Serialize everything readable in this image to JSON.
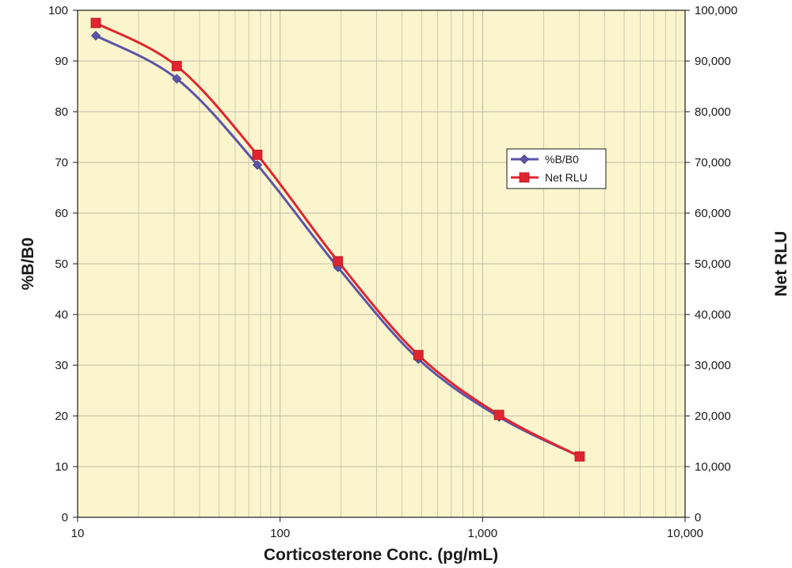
{
  "chart_data": {
    "type": "line",
    "x_scale": "log",
    "xlim": [
      10,
      10000
    ],
    "x_ticks": [
      10,
      100,
      1000,
      10000
    ],
    "x_tick_labels": [
      "10",
      "100",
      "1,000",
      "10,000"
    ],
    "xlabel": "Corticosterone Conc. (pg/mL)",
    "ylabel": "%B/B0",
    "ylim": [
      0,
      100
    ],
    "y_ticks": [
      0,
      10,
      20,
      30,
      40,
      50,
      60,
      70,
      80,
      90,
      100
    ],
    "y_tick_labels": [
      "0",
      "10",
      "20",
      "30",
      "40",
      "50",
      "60",
      "70",
      "80",
      "90",
      "100"
    ],
    "y2label": "Net RLU",
    "y2lim": [
      0,
      100000
    ],
    "y2_ticks": [
      0,
      10000,
      20000,
      30000,
      40000,
      50000,
      60000,
      70000,
      80000,
      90000,
      100000
    ],
    "y2_tick_labels": [
      "0",
      "10,000",
      "20,000",
      "30,000",
      "40,000",
      "50,000",
      "60,000",
      "70,000",
      "80,000",
      "90,000",
      "100,000"
    ],
    "x": [
      12.3,
      30.9,
      77.2,
      193,
      482,
      1206,
      3016
    ],
    "series": [
      {
        "name": "%B/B0",
        "axis": "left",
        "marker": "diamond",
        "color": "#5b55a8",
        "values": [
          95,
          86.5,
          69.5,
          49.3,
          31.2,
          19.8,
          12
        ]
      },
      {
        "name": "Net RLU",
        "axis": "right",
        "marker": "square",
        "color": "#e02530",
        "values": [
          97500,
          89000,
          71500,
          50500,
          32000,
          20200,
          12000
        ]
      }
    ],
    "grid": true,
    "legend_position": "right-middle",
    "plot_background": "#faf5cc",
    "grid_color": "#bdbaa3"
  }
}
